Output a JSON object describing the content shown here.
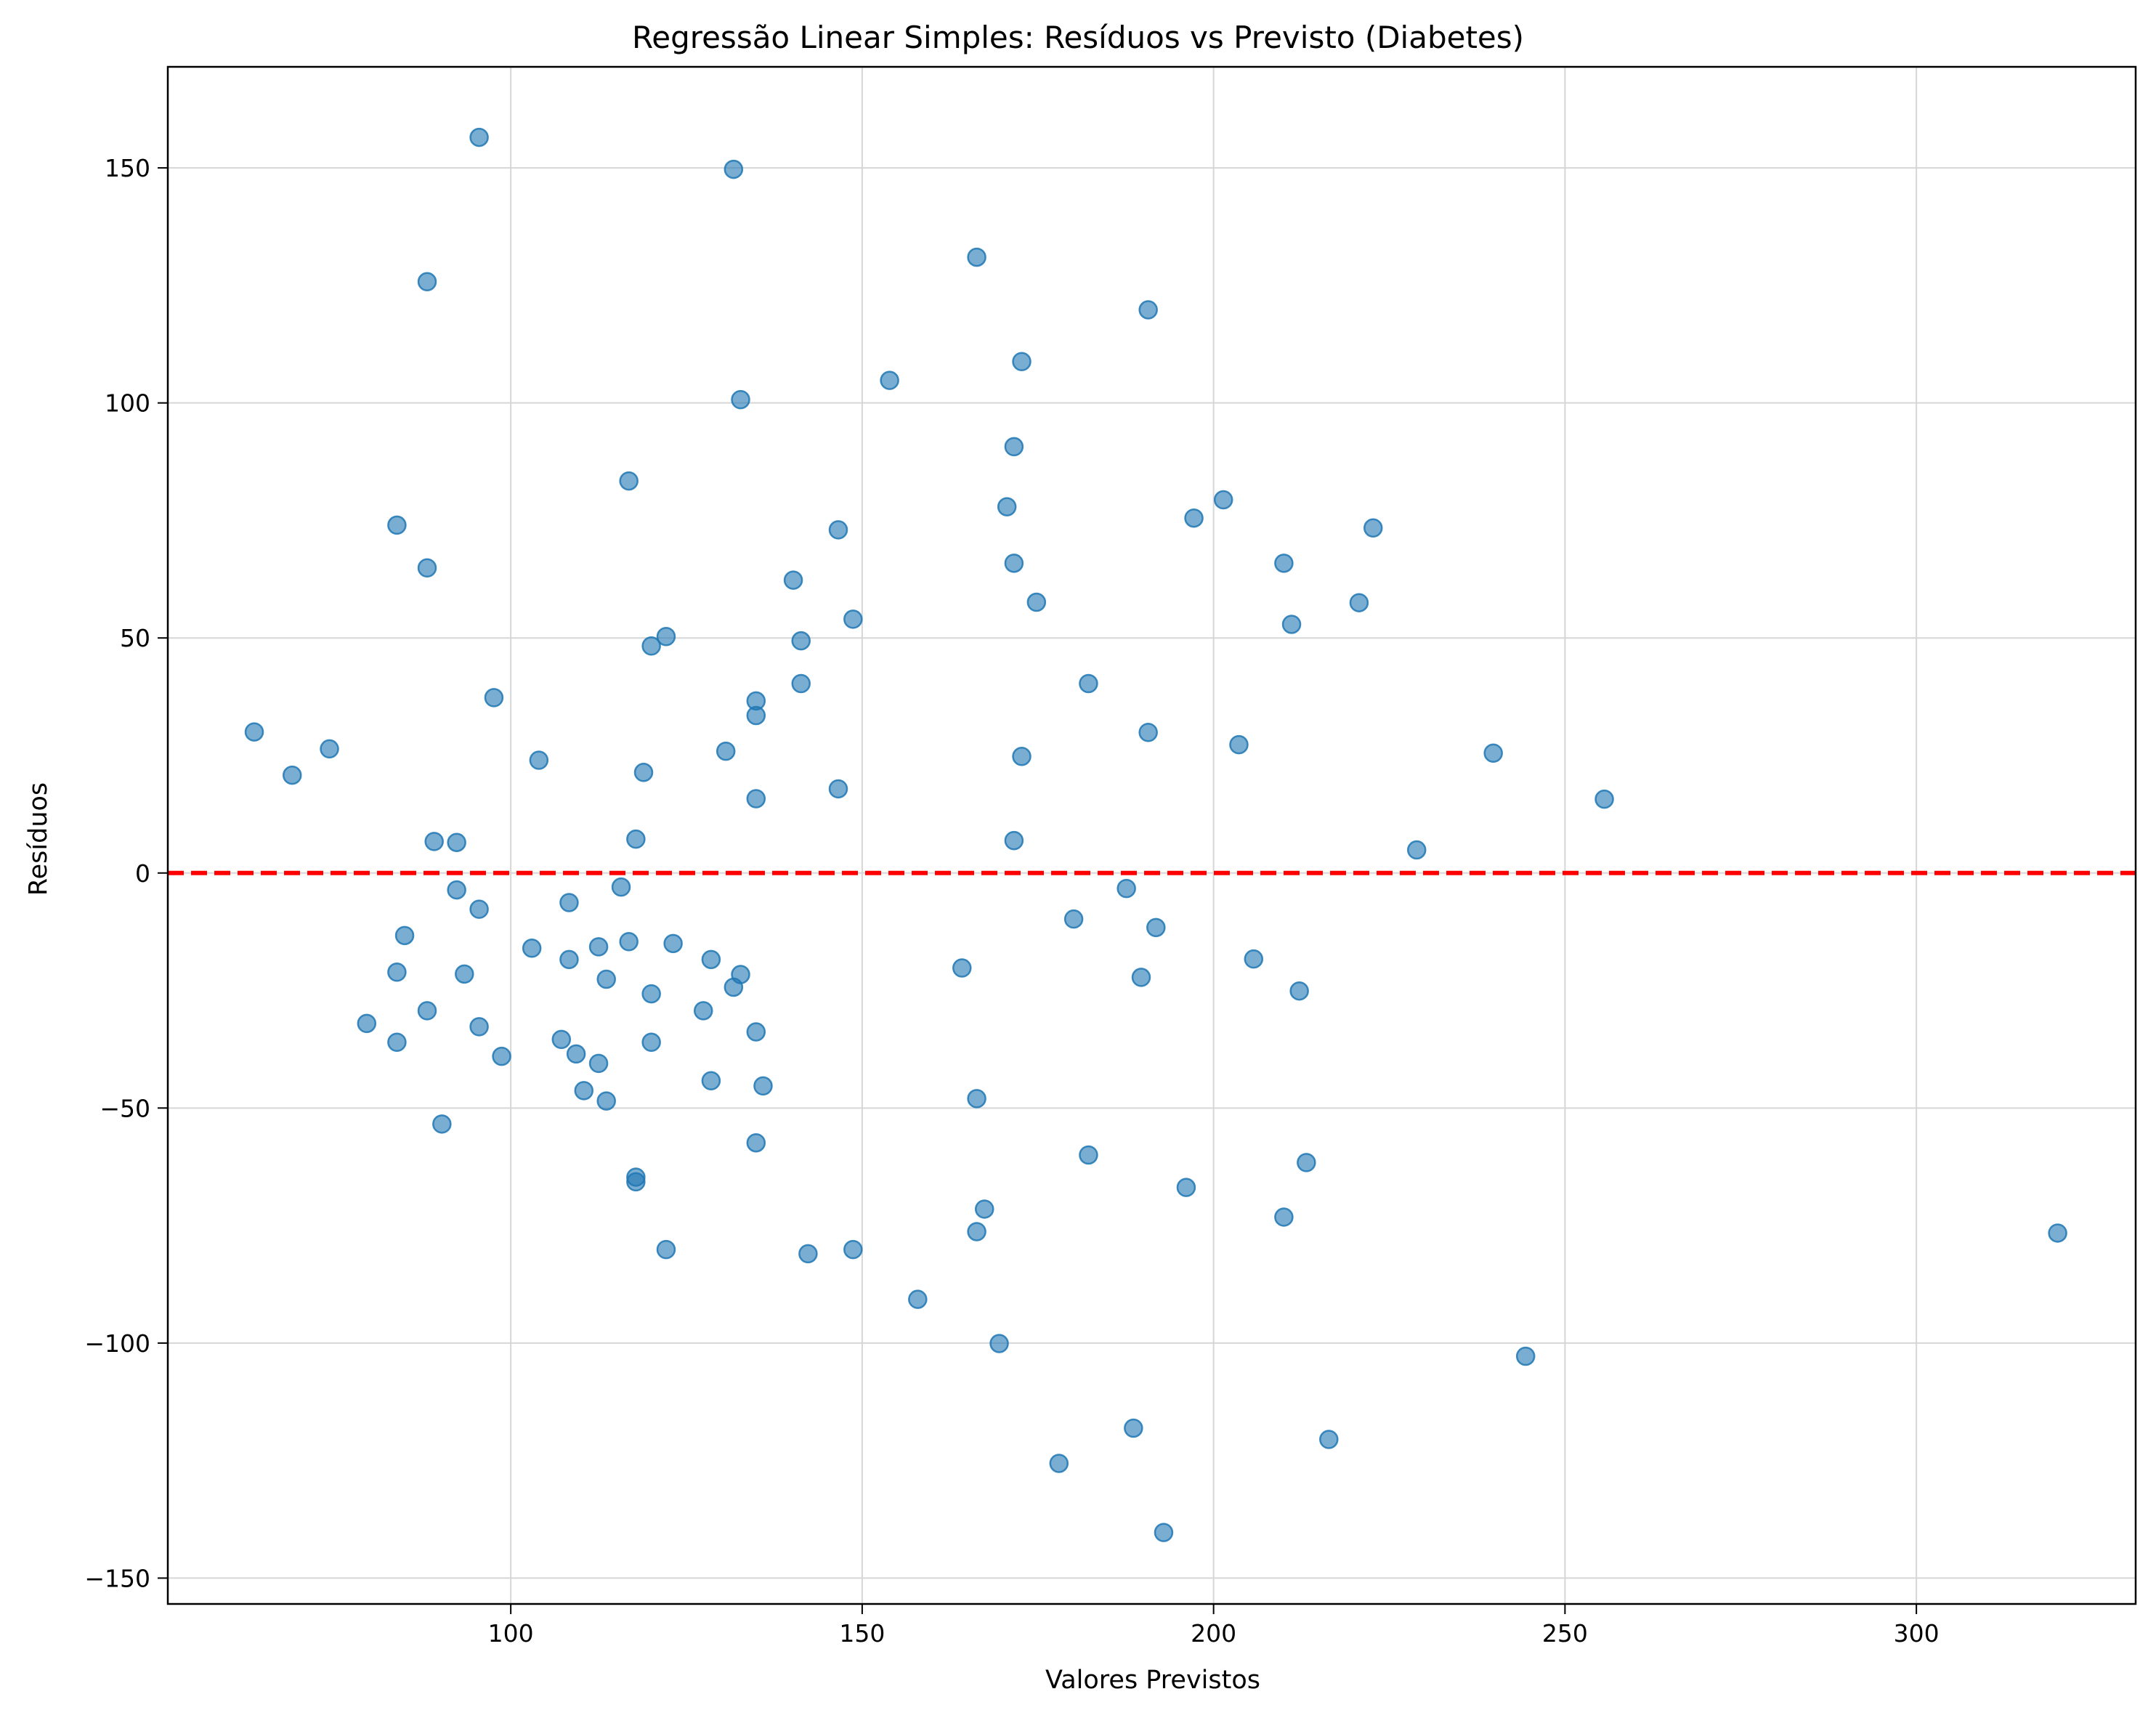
{
  "chart_data": {
    "type": "scatter",
    "title": "Regressão Linear Simples: Resíduos vs Previsto (Diabetes)",
    "xlabel": "Valores Previstos",
    "ylabel": "Resíduos",
    "xlim": [
      51.2,
      331.2
    ],
    "ylim": [
      -155.5,
      171.5
    ],
    "xticks": [
      100,
      150,
      200,
      250,
      300
    ],
    "yticks": [
      -150,
      -100,
      -50,
      0,
      50,
      100,
      150
    ],
    "xtick_labels": [
      "100",
      "150",
      "200",
      "250",
      "300"
    ],
    "ytick_labels": [
      "−150",
      "−100",
      "−50",
      "0",
      "50",
      "100",
      "150"
    ],
    "grid": true,
    "point_color": "#1f77b4",
    "point_alpha": 0.6,
    "reference_line": {
      "y": 0,
      "color": "#ff0000",
      "style": "dashed"
    },
    "points": [
      [
        63.5,
        30
      ],
      [
        68.9,
        20.8
      ],
      [
        74.2,
        26.4
      ],
      [
        79.5,
        -32
      ],
      [
        83.8,
        74
      ],
      [
        83.8,
        -21.1
      ],
      [
        83.8,
        -36
      ],
      [
        84.9,
        -13.3
      ],
      [
        88.1,
        64.9
      ],
      [
        88.1,
        125.8
      ],
      [
        88.1,
        -29.3
      ],
      [
        89.1,
        6.7
      ],
      [
        90.2,
        -53.4
      ],
      [
        92.3,
        6.5
      ],
      [
        92.3,
        -3.6
      ],
      [
        93.4,
        -21.5
      ],
      [
        95.5,
        156.5
      ],
      [
        95.5,
        -7.7
      ],
      [
        95.5,
        -32.7
      ],
      [
        97.6,
        37.3
      ],
      [
        98.7,
        -39
      ],
      [
        103,
        -16
      ],
      [
        104,
        24
      ],
      [
        107.2,
        -35.4
      ],
      [
        108.3,
        -6.3
      ],
      [
        108.3,
        -18.4
      ],
      [
        109.3,
        -38.5
      ],
      [
        110.4,
        -46.3
      ],
      [
        112.5,
        -15.7
      ],
      [
        112.5,
        -40.5
      ],
      [
        113.6,
        -22.6
      ],
      [
        113.6,
        -48.5
      ],
      [
        115.7,
        -3
      ],
      [
        116.8,
        83.4
      ],
      [
        116.8,
        -14.6
      ],
      [
        117.8,
        7.2
      ],
      [
        117.8,
        -64.7
      ],
      [
        117.8,
        -65.7
      ],
      [
        118.9,
        21.4
      ],
      [
        120,
        48.3
      ],
      [
        120,
        -25.7
      ],
      [
        120,
        -36
      ],
      [
        122.1,
        50.3
      ],
      [
        122.1,
        -80.1
      ],
      [
        123.1,
        -15
      ],
      [
        127.4,
        -29.3
      ],
      [
        128.5,
        -18.4
      ],
      [
        128.5,
        -44.2
      ],
      [
        130.6,
        25.9
      ],
      [
        131.7,
        149.7
      ],
      [
        131.7,
        -24.3
      ],
      [
        132.7,
        100.7
      ],
      [
        132.7,
        -21.6
      ],
      [
        134.9,
        36.6
      ],
      [
        134.9,
        33.5
      ],
      [
        134.9,
        15.8
      ],
      [
        134.9,
        -33.8
      ],
      [
        134.9,
        -57.4
      ],
      [
        135.9,
        -45.3
      ],
      [
        140.2,
        62.3
      ],
      [
        141.3,
        49.4
      ],
      [
        141.3,
        40.3
      ],
      [
        142.3,
        -81
      ],
      [
        146.6,
        73
      ],
      [
        146.6,
        17.9
      ],
      [
        148.7,
        54
      ],
      [
        148.7,
        -80.1
      ],
      [
        153.9,
        104.8
      ],
      [
        157.9,
        -90.7
      ],
      [
        164.2,
        -20.2
      ],
      [
        166.3,
        131
      ],
      [
        166.3,
        -48
      ],
      [
        166.3,
        -76.3
      ],
      [
        167.4,
        -71.5
      ],
      [
        169.5,
        -100.1
      ],
      [
        170.6,
        77.9
      ],
      [
        171.6,
        90.7
      ],
      [
        171.6,
        65.9
      ],
      [
        171.6,
        6.9
      ],
      [
        172.7,
        108.8
      ],
      [
        172.7,
        24.8
      ],
      [
        174.8,
        57.6
      ],
      [
        178,
        -125.6
      ],
      [
        180.1,
        -9.8
      ],
      [
        182.2,
        40.3
      ],
      [
        182.2,
        -60
      ],
      [
        187.6,
        -3.3
      ],
      [
        188.6,
        -118.1
      ],
      [
        189.7,
        -22.2
      ],
      [
        190.7,
        119.8
      ],
      [
        190.7,
        29.9
      ],
      [
        191.8,
        -11.6
      ],
      [
        192.9,
        -140.3
      ],
      [
        196.1,
        -66.9
      ],
      [
        197.2,
        75.5
      ],
      [
        201.4,
        79.4
      ],
      [
        203.6,
        27.3
      ],
      [
        205.7,
        -18.3
      ],
      [
        210,
        65.9
      ],
      [
        210,
        -73.2
      ],
      [
        211.1,
        52.9
      ],
      [
        212.2,
        -25.1
      ],
      [
        213.2,
        -61.6
      ],
      [
        216.4,
        -120.5
      ],
      [
        220.7,
        57.5
      ],
      [
        222.7,
        73.4
      ],
      [
        228.9,
        4.9
      ],
      [
        239.8,
        25.5
      ],
      [
        244.4,
        -102.8
      ],
      [
        255.6,
        15.7
      ],
      [
        320.1,
        -76.6
      ]
    ]
  }
}
